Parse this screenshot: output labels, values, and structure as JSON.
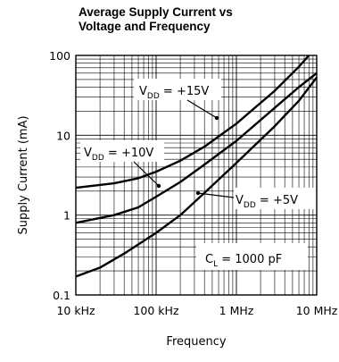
{
  "chart_data": {
    "type": "line",
    "title_lines": [
      "Average Supply Current vs",
      "Voltage and Frequency"
    ],
    "xlabel": "Frequency",
    "ylabel": "Supply Current (mA)",
    "x_scale": "log",
    "y_scale": "log",
    "xlim": [
      10000,
      10000000
    ],
    "ylim": [
      0.1,
      100
    ],
    "grid": true,
    "x_ticks": [
      {
        "value": 10000,
        "label": "10 kHz"
      },
      {
        "value": 100000,
        "label": "100 kHz"
      },
      {
        "value": 1000000,
        "label": "1 MHz"
      },
      {
        "value": 10000000,
        "label": "10 MHz"
      }
    ],
    "y_ticks": [
      {
        "value": 0.1,
        "label": "0.1"
      },
      {
        "value": 1,
        "label": "1"
      },
      {
        "value": 10,
        "label": "10"
      },
      {
        "value": 100,
        "label": "100"
      }
    ],
    "series": [
      {
        "name": "VDD = +15V",
        "label_sub": "DD",
        "label_pre": "V",
        "label_post": " = +15V",
        "points": [
          [
            10000,
            2.2
          ],
          [
            30000,
            2.5
          ],
          [
            60000,
            2.9
          ],
          [
            100000,
            3.5
          ],
          [
            200000,
            4.8
          ],
          [
            400000,
            7.2
          ],
          [
            1000000,
            14
          ],
          [
            3000000,
            36
          ],
          [
            6000000,
            72
          ],
          [
            8000000,
            100
          ]
        ]
      },
      {
        "name": "VDD = +10V",
        "label_sub": "DD",
        "label_pre": "V",
        "label_post": " = +10V",
        "points": [
          [
            10000,
            0.8
          ],
          [
            30000,
            1.0
          ],
          [
            60000,
            1.25
          ],
          [
            100000,
            1.7
          ],
          [
            200000,
            2.6
          ],
          [
            400000,
            4.3
          ],
          [
            1000000,
            8.5
          ],
          [
            3000000,
            22
          ],
          [
            6000000,
            40
          ],
          [
            10000000,
            60
          ]
        ]
      },
      {
        "name": "VDD = +5V",
        "label_sub": "DD",
        "label_pre": "V",
        "label_post": " = +5V",
        "points": [
          [
            10000,
            0.17
          ],
          [
            20000,
            0.22
          ],
          [
            40000,
            0.33
          ],
          [
            100000,
            0.6
          ],
          [
            200000,
            1.0
          ],
          [
            400000,
            1.9
          ],
          [
            1000000,
            4.5
          ],
          [
            3000000,
            13
          ],
          [
            6000000,
            27
          ],
          [
            10000000,
            53
          ]
        ]
      }
    ],
    "annotations": [
      {
        "text_pre": "C",
        "text_sub": "L",
        "text_post": " = 1000 pF"
      }
    ]
  }
}
